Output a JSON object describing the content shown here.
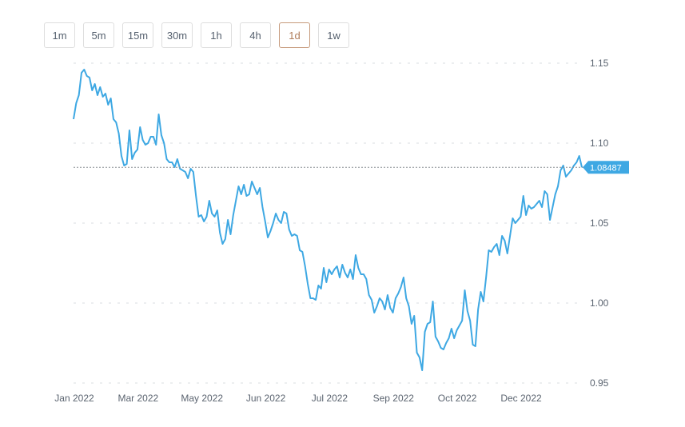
{
  "timeframes": {
    "active": "1d",
    "items": [
      {
        "label": "1m"
      },
      {
        "label": "5m"
      },
      {
        "label": "15m"
      },
      {
        "label": "30m"
      },
      {
        "label": "1h"
      },
      {
        "label": "4h"
      },
      {
        "label": "1d"
      },
      {
        "label": "1w"
      }
    ]
  },
  "chart_data": {
    "type": "line",
    "title": "",
    "xlabel": "",
    "ylabel": "",
    "ylim": [
      0.95,
      1.15
    ],
    "grid": true,
    "y_ticks": [
      "1.15",
      "1.10",
      "1.05",
      "1.00",
      "0.95"
    ],
    "x_ticks": [
      "Jan 2022",
      "Mar 2022",
      "May 2022",
      "Jun 2022",
      "Jul 2022",
      "Sep 2022",
      "Oct 2022",
      "Dec 2022"
    ],
    "current_price": 1.08487,
    "current_price_label": "1.08487",
    "line_color": "#3ea8e3",
    "price_tag_color": "#3ea8e3",
    "series": [
      {
        "values": [
          1.115,
          1.125,
          1.13,
          1.144,
          1.146,
          1.142,
          1.141,
          1.133,
          1.137,
          1.13,
          1.135,
          1.129,
          1.131,
          1.124,
          1.128,
          1.115,
          1.113,
          1.106,
          1.092,
          1.086,
          1.087,
          1.108,
          1.09,
          1.094,
          1.096,
          1.11,
          1.102,
          1.099,
          1.1,
          1.104,
          1.104,
          1.099,
          1.118,
          1.105,
          1.1,
          1.09,
          1.088,
          1.088,
          1.085,
          1.09,
          1.084,
          1.083,
          1.082,
          1.078,
          1.084,
          1.082,
          1.067,
          1.054,
          1.055,
          1.051,
          1.054,
          1.064,
          1.056,
          1.054,
          1.058,
          1.044,
          1.037,
          1.04,
          1.052,
          1.043,
          1.055,
          1.064,
          1.073,
          1.068,
          1.074,
          1.067,
          1.068,
          1.076,
          1.072,
          1.068,
          1.072,
          1.06,
          1.051,
          1.041,
          1.045,
          1.05,
          1.056,
          1.052,
          1.05,
          1.057,
          1.056,
          1.046,
          1.042,
          1.043,
          1.042,
          1.033,
          1.032,
          1.023,
          1.012,
          1.003,
          1.003,
          1.002,
          1.011,
          1.009,
          1.022,
          1.013,
          1.021,
          1.018,
          1.021,
          1.023,
          1.016,
          1.024,
          1.019,
          1.016,
          1.021,
          1.015,
          1.03,
          1.022,
          1.018,
          1.018,
          1.015,
          1.005,
          1.002,
          0.994,
          0.998,
          1.003,
          1.001,
          0.996,
          1.005,
          0.997,
          0.994,
          1.003,
          1.006,
          1.01,
          1.016,
          1.003,
          0.998,
          0.987,
          0.992,
          0.969,
          0.966,
          0.958,
          0.982,
          0.987,
          0.988,
          1.001,
          0.979,
          0.976,
          0.972,
          0.971,
          0.975,
          0.978,
          0.984,
          0.978,
          0.983,
          0.986,
          0.989,
          1.008,
          0.995,
          0.989,
          0.974,
          0.973,
          0.996,
          1.007,
          1.001,
          1.016,
          1.033,
          1.032,
          1.035,
          1.037,
          1.03,
          1.042,
          1.039,
          1.031,
          1.042,
          1.053,
          1.05,
          1.052,
          1.054,
          1.067,
          1.055,
          1.061,
          1.059,
          1.06,
          1.062,
          1.064,
          1.06,
          1.07,
          1.068,
          1.052,
          1.06,
          1.068,
          1.073,
          1.083,
          1.086,
          1.079,
          1.081,
          1.083,
          1.086,
          1.088,
          1.092,
          1.08487
        ]
      }
    ]
  }
}
